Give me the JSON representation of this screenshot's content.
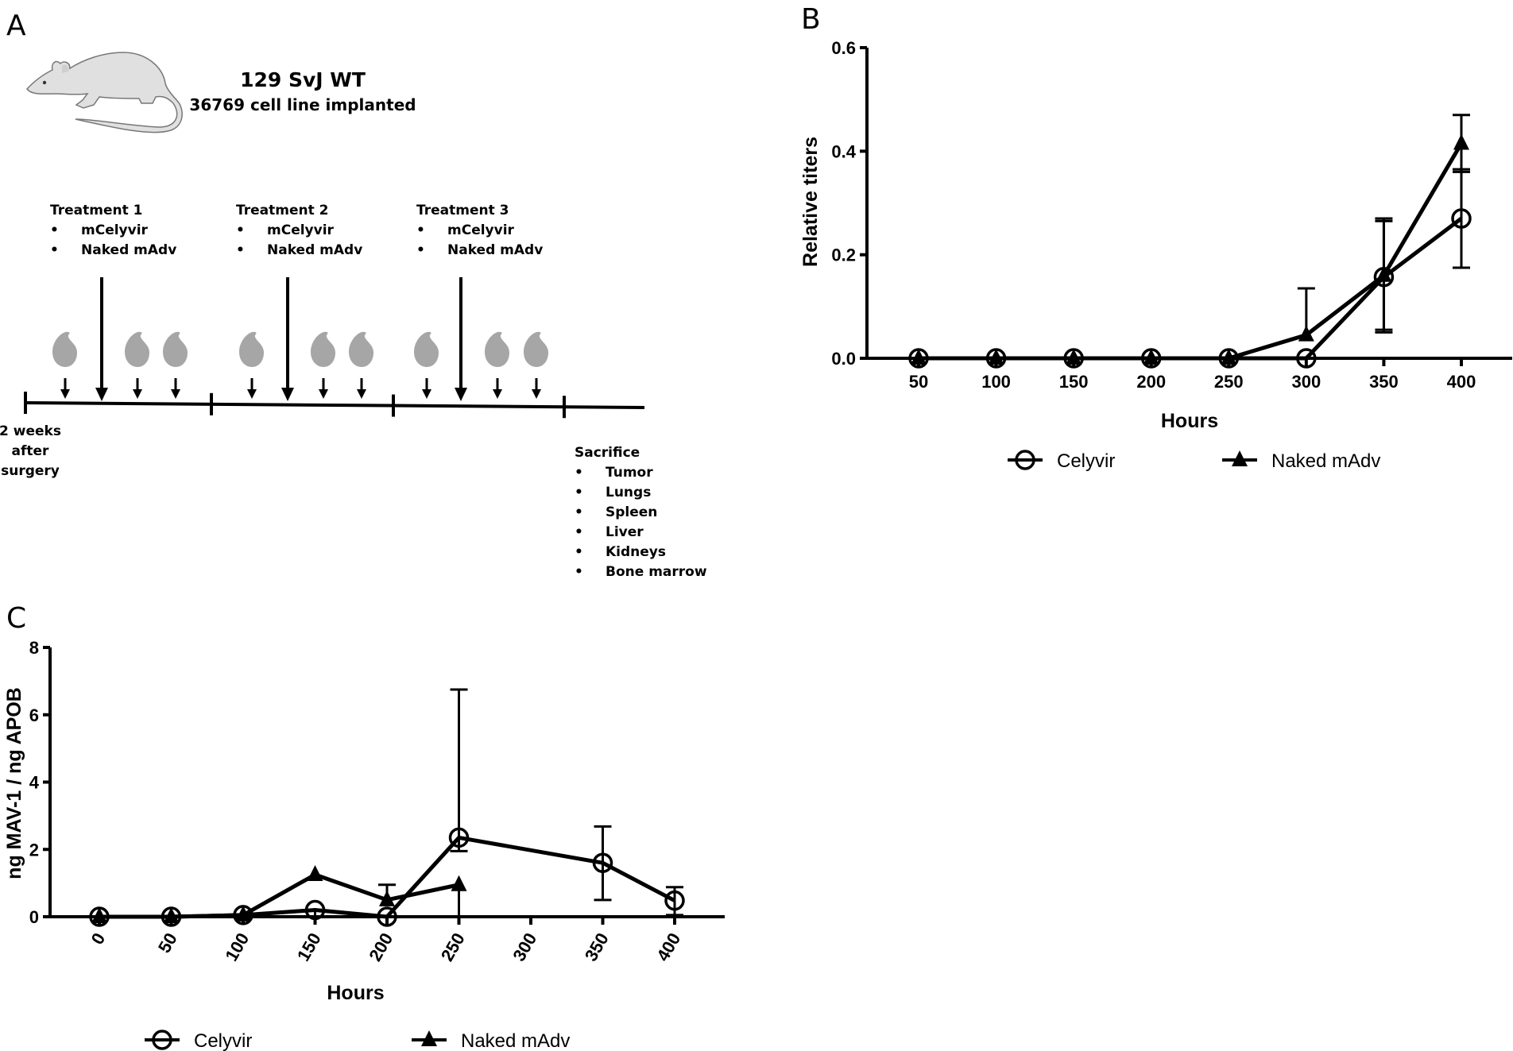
{
  "panel_a": {
    "letter": "A",
    "strain": "129 SvJ WT",
    "implant": "36769 cell line implanted",
    "treatments": [
      {
        "title": "Treatment 1",
        "items": [
          "mCelyvir",
          "Naked mAdv"
        ]
      },
      {
        "title": "Treatment 2",
        "items": [
          "mCelyvir",
          "Naked mAdv"
        ]
      },
      {
        "title": "Treatment 3",
        "items": [
          "mCelyvir",
          "Naked mAdv"
        ]
      }
    ],
    "start_label": [
      "2 weeks",
      "after",
      "surgery"
    ],
    "sacrifice": {
      "title": "Sacrifice",
      "items": [
        "Tumor",
        "Lungs",
        "Spleen",
        "Liver",
        "Kidneys",
        "Bone marrow"
      ]
    },
    "bullet": "•",
    "icons": [
      "mouse-icon",
      "drop-icon",
      "arrow-down-icon"
    ],
    "colors": {
      "mouse_fill": "#e0e0e0",
      "drop_fill": "#a6a6a6"
    }
  },
  "chart_data": [
    {
      "panel": "B",
      "type": "line",
      "xlabel": "Hours",
      "ylabel": "Relative titers",
      "ylim": [
        0,
        0.6
      ],
      "yticks": [
        "0.0",
        "0.2",
        "0.4",
        "0.6"
      ],
      "x": [
        50,
        100,
        150,
        200,
        250,
        300,
        350,
        400
      ],
      "xticks": [
        "50",
        "100",
        "150",
        "200",
        "250",
        "300",
        "350",
        "400"
      ],
      "legend_position": "bottom",
      "grid": false,
      "series": [
        {
          "name": "Celyvir",
          "marker": "open-circle",
          "values": [
            0,
            0,
            0,
            0,
            0,
            0,
            0.157,
            0.27
          ],
          "err_low": [
            0,
            0,
            0,
            0,
            0,
            0,
            0.055,
            0.175
          ],
          "err_high": [
            0,
            0,
            0,
            0,
            0,
            0,
            0.27,
            0.365
          ]
        },
        {
          "name": "Naked mAdv",
          "marker": "filled-triangle",
          "values": [
            0,
            0,
            0,
            0,
            0,
            0.045,
            0.16,
            0.415
          ],
          "err_low": [
            0,
            0,
            0,
            0,
            0,
            0.045,
            0.05,
            0.36
          ],
          "err_high": [
            0,
            0,
            0,
            0,
            0,
            0.135,
            0.265,
            0.47
          ]
        }
      ]
    },
    {
      "panel": "C",
      "type": "line",
      "xlabel": "Hours",
      "ylabel": "ng MAV-1 / ng APOB",
      "ylim": [
        0,
        8
      ],
      "yticks": [
        "0",
        "2",
        "4",
        "6",
        "8"
      ],
      "xticks": [
        "0",
        "50",
        "100",
        "150",
        "200",
        "250",
        "300",
        "350",
        "400"
      ],
      "xtick_values": [
        0,
        50,
        100,
        150,
        200,
        250,
        300,
        350,
        400
      ],
      "legend_position": "bottom",
      "grid": false,
      "series": [
        {
          "name": "Celyvir",
          "marker": "open-circle",
          "x": [
            0,
            50,
            100,
            150,
            200,
            250,
            350,
            400
          ],
          "values": [
            0,
            0,
            0.05,
            0.2,
            0,
            2.35,
            1.6,
            0.48
          ],
          "err_low": [
            0,
            0,
            0.05,
            0,
            0,
            1.95,
            0.5,
            0.05
          ],
          "err_high": [
            0,
            0,
            0.05,
            0.2,
            0,
            6.75,
            2.68,
            0.88
          ]
        },
        {
          "name": "Naked mAdv",
          "marker": "filled-triangle",
          "x": [
            0,
            50,
            100,
            150,
            200,
            250
          ],
          "values": [
            0,
            0,
            0.05,
            1.25,
            0.5,
            0.95
          ],
          "err_low": [
            0,
            0,
            0.05,
            1.25,
            0.5,
            0
          ],
          "err_high": [
            0,
            0,
            0.05,
            1.25,
            0.95,
            0.95
          ]
        }
      ]
    }
  ]
}
